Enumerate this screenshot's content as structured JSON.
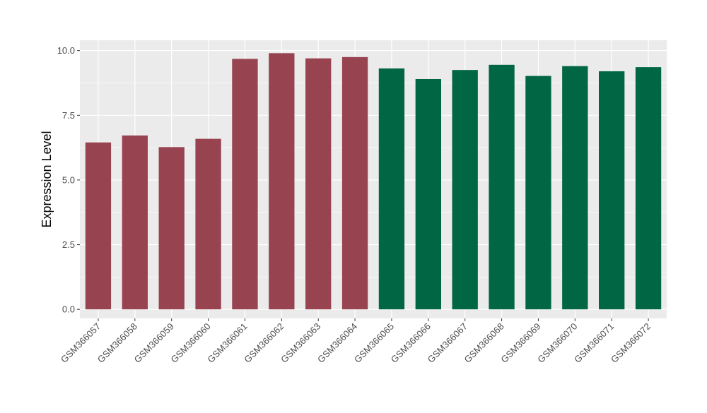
{
  "chart_data": {
    "type": "bar",
    "title": "",
    "xlabel": "",
    "ylabel": "Expression Level",
    "ylim": [
      -0.35,
      10.4
    ],
    "yticks": [
      0.0,
      2.5,
      5.0,
      7.5,
      10.0
    ],
    "ytick_labels": [
      "0.0",
      "2.5",
      "5.0",
      "7.5",
      "10.0"
    ],
    "grid": true,
    "legend": "none",
    "categories": [
      "GSM366057",
      "GSM366058",
      "GSM366059",
      "GSM366060",
      "GSM366061",
      "GSM366062",
      "GSM366063",
      "GSM366064",
      "GSM366065",
      "GSM366066",
      "GSM366067",
      "GSM366068",
      "GSM366069",
      "GSM366070",
      "GSM366071",
      "GSM366072"
    ],
    "values": [
      6.45,
      6.72,
      6.27,
      6.59,
      9.68,
      9.9,
      9.7,
      9.75,
      9.31,
      8.9,
      9.25,
      9.45,
      9.02,
      9.4,
      9.2,
      9.36
    ],
    "group": [
      0,
      0,
      0,
      0,
      0,
      0,
      0,
      0,
      1,
      1,
      1,
      1,
      1,
      1,
      1,
      1
    ],
    "colors": [
      "#984350",
      "#006644"
    ],
    "panel_color": "#ebebeb",
    "grid_color": "#ffffff"
  }
}
